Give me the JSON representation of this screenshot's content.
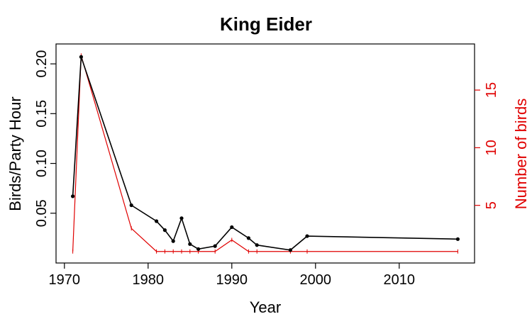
{
  "chart_data": {
    "type": "line",
    "title": "King Eider",
    "xlabel": "Year",
    "ylabel_left": "Birds/Party Hour",
    "ylabel_right": "Number of birds",
    "xlim": [
      1969,
      2019
    ],
    "ylim_left": [
      0.0,
      0.22
    ],
    "ylim_right": [
      0,
      19
    ],
    "x_ticks": [
      1970,
      1980,
      1990,
      2000,
      2010
    ],
    "y_ticks_left": [
      "0.05",
      "0.10",
      "0.15",
      "0.20"
    ],
    "y_ticks_right": [
      "5",
      "10",
      "15"
    ],
    "grid": false,
    "colors": {
      "left_series": "#000000",
      "right_series": "#e00000",
      "axis": "#000000"
    },
    "series": [
      {
        "axis": "left",
        "points": [
          [
            1971,
            0.067
          ],
          [
            1972,
            0.207
          ],
          [
            1978,
            0.058
          ],
          [
            1981,
            0.042
          ],
          [
            1982,
            0.033
          ],
          [
            1983,
            0.022
          ],
          [
            1984,
            0.045
          ],
          [
            1985,
            0.019
          ],
          [
            1986,
            0.014
          ],
          [
            1988,
            0.017
          ],
          [
            1990,
            0.036
          ],
          [
            1992,
            0.025
          ],
          [
            1993,
            0.018
          ],
          [
            1997,
            0.013
          ],
          [
            1999,
            0.027
          ],
          [
            2017,
            0.024
          ]
        ]
      },
      {
        "axis": "right",
        "points": [
          [
            1971,
            1
          ],
          [
            1972,
            18
          ],
          [
            1978,
            3
          ],
          [
            1981,
            1
          ],
          [
            1982,
            1
          ],
          [
            1983,
            1
          ],
          [
            1984,
            1
          ],
          [
            1985,
            1
          ],
          [
            1986,
            1
          ],
          [
            1988,
            1
          ],
          [
            1990,
            2
          ],
          [
            1992,
            1
          ],
          [
            1993,
            1
          ],
          [
            1997,
            1
          ],
          [
            1999,
            1
          ],
          [
            2017,
            1
          ]
        ]
      }
    ]
  }
}
